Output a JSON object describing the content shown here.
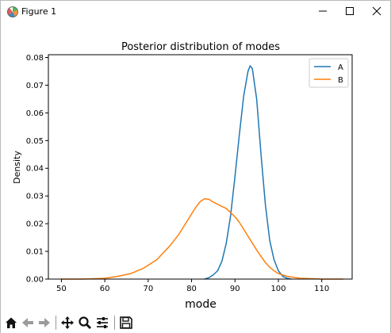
{
  "window": {
    "title": "Figure 1",
    "minimize_icon": "minimize-icon",
    "maximize_icon": "maximize-icon",
    "close_icon": "close-icon"
  },
  "toolbar": {
    "buttons": [
      "home-icon",
      "back-arrow-icon",
      "forward-arrow-icon",
      "pan-icon",
      "zoom-icon",
      "configure-subplots-icon",
      "save-icon"
    ]
  },
  "chart_data": {
    "type": "line",
    "title": "Posterior distribution of modes",
    "xlabel": "mode",
    "ylabel": "Density",
    "xlim": [
      47,
      117
    ],
    "ylim": [
      0,
      0.081
    ],
    "xticks": [
      50,
      60,
      70,
      80,
      90,
      100,
      110
    ],
    "xtick_labels": [
      "50",
      "60",
      "70",
      "80",
      "90",
      "100",
      "110"
    ],
    "yticks": [
      0.0,
      0.01,
      0.02,
      0.03,
      0.04,
      0.05,
      0.06,
      0.07,
      0.08
    ],
    "ytick_labels": [
      "0.00",
      "0.01",
      "0.02",
      "0.03",
      "0.04",
      "0.05",
      "0.06",
      "0.07",
      "0.08"
    ],
    "grid": false,
    "legend_position": "top-right",
    "series": [
      {
        "name": "A",
        "color": "#1f77b4",
        "x": [
          83,
          84,
          85,
          86,
          87,
          88,
          89,
          90,
          91,
          92,
          93,
          93.5,
          94,
          95,
          96,
          97,
          98,
          99,
          100,
          101,
          102,
          103
        ],
        "y": [
          0.0,
          0.0005,
          0.0015,
          0.003,
          0.0065,
          0.013,
          0.023,
          0.037,
          0.052,
          0.066,
          0.075,
          0.077,
          0.076,
          0.065,
          0.045,
          0.027,
          0.014,
          0.007,
          0.003,
          0.001,
          0.0003,
          0.0
        ]
      },
      {
        "name": "B",
        "color": "#ff7f0e",
        "x": [
          50,
          55,
          60,
          63,
          66,
          69,
          72,
          75,
          77,
          79,
          80,
          81,
          82,
          83,
          84,
          85,
          86,
          87,
          88,
          89,
          90,
          91,
          92,
          93,
          94,
          95,
          96,
          97,
          98,
          99,
          100,
          102,
          105,
          110,
          115
        ],
        "y": [
          0.0,
          0.0,
          0.0003,
          0.001,
          0.002,
          0.004,
          0.007,
          0.012,
          0.016,
          0.021,
          0.0235,
          0.026,
          0.028,
          0.029,
          0.0288,
          0.0278,
          0.027,
          0.0262,
          0.0255,
          0.024,
          0.0225,
          0.0205,
          0.018,
          0.0155,
          0.013,
          0.0105,
          0.0082,
          0.006,
          0.0043,
          0.003,
          0.002,
          0.001,
          0.0003,
          0.0,
          0.0
        ]
      }
    ]
  }
}
